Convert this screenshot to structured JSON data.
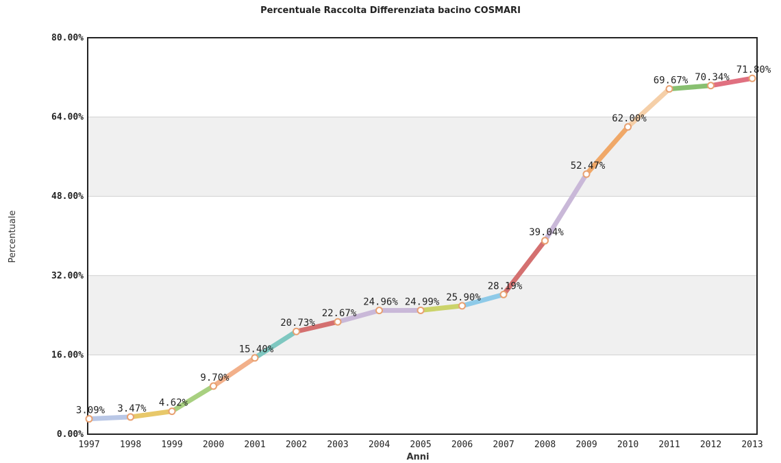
{
  "chart_data": {
    "type": "line",
    "title": "Percentuale Raccolta Differenziata bacino COSMARI",
    "xlabel": "Anni",
    "ylabel": "Percentuale",
    "ylim": [
      0,
      80
    ],
    "yticks": [
      "0.00%",
      "16.00%",
      "32.00%",
      "48.00%",
      "64.00%",
      "80.00%"
    ],
    "ytick_values": [
      0,
      16,
      32,
      48,
      64,
      80
    ],
    "grid": "alternating horizontal bands",
    "categories": [
      "1997",
      "1998",
      "1999",
      "2000",
      "2001",
      "2002",
      "2003",
      "2004",
      "2005",
      "2006",
      "2007",
      "2008",
      "2009",
      "2010",
      "2011",
      "2012",
      "2013"
    ],
    "values": [
      3.09,
      3.47,
      4.62,
      9.7,
      15.4,
      20.73,
      22.67,
      24.96,
      24.99,
      25.9,
      28.19,
      39.04,
      52.47,
      62.0,
      69.67,
      70.34,
      71.8
    ],
    "labels": [
      "3.09%",
      "3.47%",
      "4.62%",
      "9.70%",
      "15.40%",
      "20.73%",
      "22.67%",
      "24.96%",
      "24.99%",
      "25.90%",
      "28.19%",
      "39.04%",
      "52.47%",
      "62.00%",
      "69.67%",
      "70.34%",
      "71.80%"
    ],
    "segment_colors": [
      "#b9c7e6",
      "#e8c86a",
      "#a8d080",
      "#f2b08a",
      "#7ec7c0",
      "#d47070",
      "#c9b8d8",
      "#c9b8d8",
      "#cbd36a",
      "#8ecae8",
      "#d47070",
      "#c9b8d8",
      "#f0a868",
      "#f5cfa8",
      "#88c070",
      "#e07080"
    ],
    "band_color": "#f0f0f0",
    "point_color": "#e8a070"
  }
}
